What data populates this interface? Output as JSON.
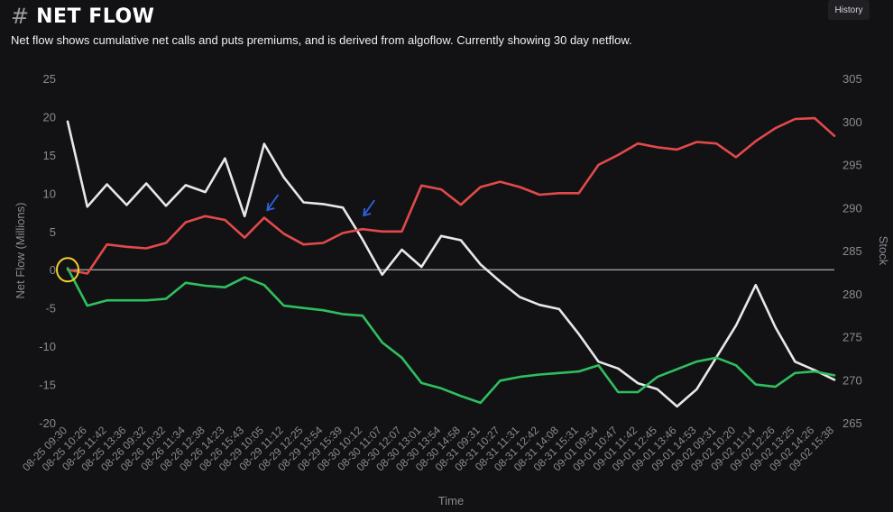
{
  "header": {
    "hash_symbol": "#",
    "title": "NET FLOW",
    "history_button": "History"
  },
  "subtitle": "Net flow shows cumulative net calls and puts premiums, and is derived from algoflow. Currently showing 30 day netflow.",
  "colors": {
    "stock": "#e8e8e8",
    "calls": "#e24a4a",
    "puts": "#2fbf5f",
    "zero_line": "#cfcfcf",
    "highlight_circle": "#f2cf2a",
    "arrow": "#2d62e0"
  },
  "icons": [
    "hash-icon",
    "yellow-circle-annotation",
    "blue-arrow-annotation"
  ],
  "chart_data": {
    "type": "line",
    "xlabel": "Time",
    "ylabel": "Net Flow (Millions)",
    "y2label": "Stock",
    "ylim": [
      -20,
      25
    ],
    "y2lim": [
      265,
      305
    ],
    "yticks": [
      "25",
      "20",
      "15",
      "10",
      "5",
      "0",
      "-5",
      "-10",
      "-15",
      "-20"
    ],
    "y2ticks": [
      "305",
      "300",
      "295",
      "290",
      "285",
      "280",
      "275",
      "270",
      "265"
    ],
    "x_ticks": [
      "08-25 09:30",
      "08-25 10:26",
      "08-25 11:42",
      "08-25 13:36",
      "08-26 09:32",
      "08-26 10:32",
      "08-26 11:34",
      "08-26 12:38",
      "08-26 14:23",
      "08-26 15:43",
      "08-29 10:05",
      "08-29 11:12",
      "08-29 12:25",
      "08-29 13:54",
      "08-29 15:39",
      "08-30 10:12",
      "08-30 11:07",
      "08-30 12:07",
      "08-30 13:01",
      "08-30 13:54",
      "08-30 14:58",
      "08-31 09:31",
      "08-31 10:27",
      "08-31 11:31",
      "08-31 12:42",
      "08-31 14:08",
      "08-31 15:31",
      "09-01 09:54",
      "09-01 10:47",
      "09-01 11:42",
      "09-01 12:45",
      "09-01 13:46",
      "09-01 14:53",
      "09-02 09:31",
      "09-02 10:20",
      "09-02 11:14",
      "09-02 12:26",
      "09-02 13:25",
      "09-02 14:26",
      "09-02 15:38"
    ],
    "grid": false,
    "legend": "none",
    "annotation_positions_tick": [
      0,
      9.7,
      14.6
    ],
    "series": [
      {
        "axis": "right",
        "values": [
          300.0,
          290.1,
          292.7,
          290.3,
          292.8,
          290.2,
          292.6,
          291.8,
          295.7,
          289.0,
          297.4,
          293.5,
          290.6,
          290.4,
          290.0,
          286.3,
          282.2,
          285.1,
          283.1,
          286.7,
          286.2,
          283.4,
          281.4,
          279.6,
          278.7,
          278.2,
          275.3,
          272.1,
          271.3,
          269.6,
          268.9,
          266.9,
          268.9,
          272.6,
          276.3,
          281.0,
          276.1,
          272.1,
          271.1,
          270.0
        ]
      },
      {
        "axis": "left",
        "values": [
          0.0,
          -0.5,
          3.3,
          3.0,
          2.8,
          3.5,
          6.2,
          7.0,
          6.5,
          4.2,
          6.8,
          4.7,
          3.3,
          3.5,
          4.8,
          5.3,
          5.0,
          5.0,
          11.0,
          10.5,
          8.5,
          10.8,
          11.5,
          10.8,
          9.8,
          10.0,
          10.0,
          13.7,
          15.0,
          16.5,
          16.0,
          15.7,
          16.7,
          16.5,
          14.7,
          16.8,
          18.5,
          19.7,
          19.8,
          17.5
        ]
      },
      {
        "axis": "left",
        "values": [
          0.2,
          -4.7,
          -4.0,
          -4.0,
          -4.0,
          -3.8,
          -1.7,
          -2.1,
          -2.3,
          -1.0,
          -2.0,
          -4.7,
          -5.0,
          -5.3,
          -5.8,
          -6.0,
          -9.5,
          -11.5,
          -14.8,
          -15.5,
          -16.5,
          -17.4,
          -14.5,
          -14.0,
          -13.7,
          -13.5,
          -13.3,
          -12.5,
          -16.0,
          -16.0,
          -14.0,
          -13.0,
          -12.0,
          -11.5,
          -12.5,
          -15.0,
          -15.3,
          -13.5,
          -13.3,
          -13.8
        ]
      }
    ]
  }
}
